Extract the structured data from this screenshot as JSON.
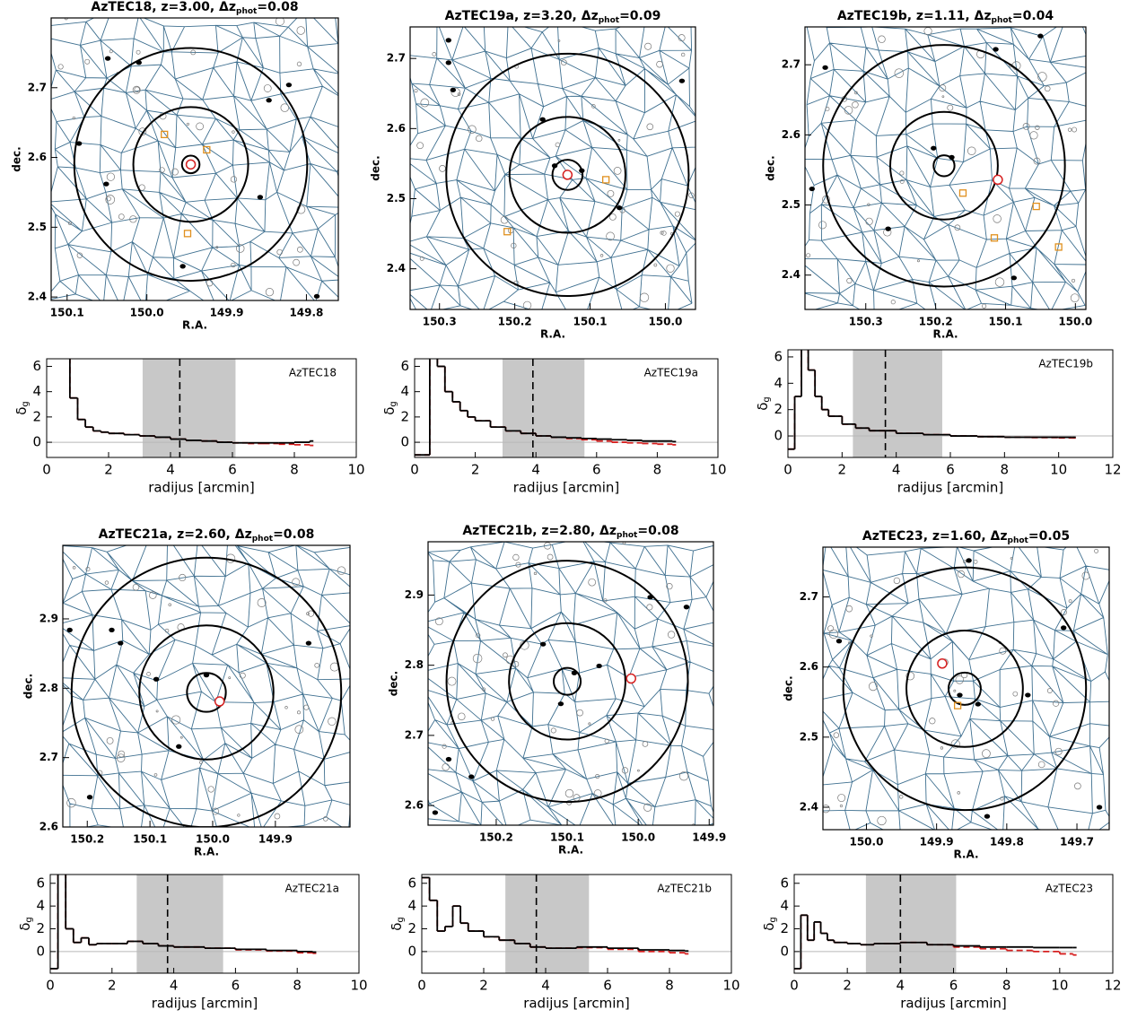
{
  "chart_data": [
    {
      "type": "map",
      "title": "AzTEC18, z=3.00, Δz",
      "title_sub": "phot",
      "title_end": "=0.08",
      "x_label": "R.A.",
      "y_label": "dec.",
      "xlim": [
        150.12,
        149.76
      ],
      "ylim": [
        2.395,
        2.8
      ],
      "xticks": [
        150.1,
        {
          "value": 150,
          "label": "150.0"
        },
        149.9,
        149.8
      ],
      "yticks": [
        2.4,
        2.5,
        2.6,
        2.7
      ],
      "center": [
        149.945,
        2.59
      ],
      "radii": [
        0.011,
        0.072,
        0.146
      ],
      "target": [
        149.945,
        2.59
      ],
      "squares": {
        "x": [
          149.978,
          149.925,
          149.949
        ],
        "y": [
          2.633,
          2.611,
          2.491
        ]
      },
      "dots": {
        "x": [
          150.049,
          150.01,
          149.822,
          149.847,
          150.051,
          149.858,
          149.955,
          149.787,
          150.085
        ],
        "y": [
          2.742,
          2.736,
          2.704,
          2.682,
          2.562,
          2.543,
          2.444,
          2.401,
          2.62
        ]
      }
    },
    {
      "type": "step",
      "label": "AzTEC18",
      "x_label": "radijus [arcmin]",
      "y_label": "δ",
      "y_label_sub": "g",
      "xlim": [
        0,
        10
      ],
      "ylim": [
        -1.2,
        6.6
      ],
      "xticks": [
        0,
        2,
        4,
        6,
        8,
        10
      ],
      "yticks": [
        0,
        2,
        4,
        6
      ],
      "hline": 0,
      "shade": [
        3.1,
        6.1
      ],
      "dashed": 4.3,
      "x": [
        0.5,
        0.75,
        1,
        1.25,
        1.5,
        1.75,
        2,
        2.5,
        3,
        3.5,
        4,
        4.5,
        5,
        5.5,
        6,
        6.5,
        7,
        7.5,
        8,
        8.5
      ],
      "series": [
        {
          "color": "#d62020",
          "dash": true,
          "values": [
            7.5,
            3.5,
            1.8,
            1.2,
            0.9,
            0.8,
            0.7,
            0.6,
            0.5,
            0.4,
            0.25,
            0.15,
            0.1,
            0,
            -0.05,
            -0.1,
            -0.1,
            -0.15,
            -0.2,
            -0.25
          ]
        },
        {
          "color": "#000000",
          "dash": false,
          "values": [
            7.5,
            3.5,
            1.8,
            1.2,
            0.9,
            0.8,
            0.7,
            0.6,
            0.5,
            0.4,
            0.25,
            0.15,
            0.1,
            0,
            -0.05,
            -0.05,
            -0.05,
            -0.05,
            0,
            0.1
          ]
        }
      ]
    },
    {
      "type": "map",
      "title": "AzTEC19a, z=3.20, Δz",
      "title_sub": "phot",
      "title_end": "=0.09",
      "x_label": "R.A.",
      "y_label": "dec.",
      "xlim": [
        150.339,
        149.96
      ],
      "ylim": [
        2.342,
        2.745
      ],
      "xticks": [
        150.3,
        150.2,
        150.1,
        {
          "value": 150,
          "label": "150.0"
        }
      ],
      "yticks": [
        2.4,
        2.5,
        2.6,
        2.7
      ],
      "center": [
        150.13,
        2.534
      ],
      "radii": [
        0.02,
        0.077,
        0.161
      ],
      "target": [
        150.13,
        2.534
      ],
      "squares": {
        "x": [
          150.079,
          150.21
        ],
        "y": [
          2.527,
          2.453
        ]
      },
      "dots": {
        "x": [
          150.288,
          150.282,
          150.147,
          150.111,
          150.061,
          150.163,
          149.978,
          150.288
        ],
        "y": [
          2.694,
          2.655,
          2.547,
          2.54,
          2.487,
          2.613,
          2.668,
          2.726
        ]
      }
    },
    {
      "type": "step",
      "label": "AzTEC19a",
      "x_label": "radijus [arcmin]",
      "y_label": "δ",
      "y_label_sub": "g",
      "xlim": [
        0,
        10
      ],
      "ylim": [
        -1.2,
        6.6
      ],
      "xticks": [
        0,
        2,
        4,
        6,
        8,
        10
      ],
      "yticks": [
        0,
        2,
        4,
        6
      ],
      "hline": 0,
      "shade": [
        2.9,
        5.6
      ],
      "dashed": 3.9,
      "x": [
        0,
        0.5,
        0.75,
        1,
        1.25,
        1.5,
        1.75,
        2,
        2.5,
        3,
        3.5,
        4,
        4.5,
        5,
        5.5,
        6,
        6.5,
        7,
        7.5,
        8,
        8.5
      ],
      "series": [
        {
          "color": "#d62020",
          "dash": true,
          "values": [
            -1,
            7.5,
            6,
            4,
            3.2,
            2.5,
            2,
            1.7,
            1.2,
            0.9,
            0.7,
            0.5,
            0.4,
            0.3,
            0.2,
            0.1,
            0,
            -0.05,
            -0.1,
            -0.15,
            -0.2
          ]
        },
        {
          "color": "#000000",
          "dash": false,
          "values": [
            -1,
            7.5,
            6,
            4,
            3.2,
            2.5,
            2,
            1.7,
            1.2,
            0.9,
            0.7,
            0.5,
            0.4,
            0.35,
            0.3,
            0.25,
            0.2,
            0.15,
            0.1,
            0.1,
            0.05
          ]
        }
      ]
    },
    {
      "type": "map",
      "title": "AzTEC19b, z=1.11, Δz",
      "title_sub": "phot",
      "title_end": "=0.04",
      "x_label": "R.A.",
      "y_label": "dec.",
      "xlim": [
        150.387,
        149.985
      ],
      "ylim": [
        2.351,
        2.754
      ],
      "xticks": [
        150.3,
        150.2,
        150.1,
        {
          "value": 150,
          "label": "150.0"
        }
      ],
      "yticks": [
        2.4,
        2.5,
        2.6,
        2.7
      ],
      "center": [
        150.188,
        2.556
      ],
      "radii": [
        0.015,
        0.077,
        0.173
      ],
      "target": [
        150.111,
        2.536
      ],
      "squares": {
        "x": [
          150.161,
          150.056,
          150.116,
          150.024
        ],
        "y": [
          2.517,
          2.498,
          2.453,
          2.44
        ]
      },
      "dots": {
        "x": [
          150.358,
          150.114,
          150.05,
          150.203,
          150.177,
          150.377,
          150.088,
          150.268
        ],
        "y": [
          2.696,
          2.722,
          2.741,
          2.581,
          2.568,
          2.523,
          2.396,
          2.466
        ]
      }
    },
    {
      "type": "step",
      "label": "AzTEC19b",
      "x_label": "radijus [arcmin]",
      "y_label": "δ",
      "y_label_sub": "g",
      "xlim": [
        0,
        12
      ],
      "ylim": [
        -1.63,
        6.54
      ],
      "xticks": [
        0,
        2,
        4,
        6,
        8,
        10,
        12
      ],
      "yticks": [
        0,
        2,
        4,
        6
      ],
      "hline": 0,
      "shade": [
        2.4,
        5.7
      ],
      "dashed": 3.6,
      "x": [
        0,
        0.25,
        0.5,
        0.75,
        1,
        1.25,
        1.5,
        2,
        2.5,
        3,
        4,
        5,
        6,
        7,
        8,
        9,
        10,
        10.5
      ],
      "series": [
        {
          "color": "#d62020",
          "dash": true,
          "values": [
            -1,
            3,
            7.5,
            5,
            3,
            2,
            1.5,
            0.9,
            0.6,
            0.4,
            0.2,
            0.1,
            0,
            -0.05,
            -0.1,
            -0.12,
            -0.15,
            -0.15
          ]
        },
        {
          "color": "#000000",
          "dash": false,
          "values": [
            -1,
            3,
            7.5,
            5,
            3,
            2,
            1.5,
            0.9,
            0.6,
            0.4,
            0.2,
            0.1,
            0,
            -0.05,
            -0.1,
            -0.1,
            -0.1,
            -0.1
          ]
        }
      ]
    },
    {
      "type": "map",
      "title": "AzTEC21a, z=2.60, Δz",
      "title_sub": "phot",
      "title_end": "=0.08",
      "x_label": "R.A.",
      "y_label": "dec.",
      "xlim": [
        150.239,
        149.781
      ],
      "ylim": [
        2.6,
        3.006
      ],
      "xticks": [
        150.2,
        150.1,
        {
          "value": 150,
          "label": "150.0"
        },
        149.9
      ],
      "yticks": [
        2.6,
        2.7,
        2.8,
        2.9
      ],
      "center": [
        150.01,
        2.794
      ],
      "radii": [
        0.031,
        0.107,
        0.215
      ],
      "target": [
        149.989,
        2.781
      ],
      "squares": {
        "x": [],
        "y": []
      },
      "dots": {
        "x": [
          150.228,
          150.161,
          150.147,
          150.09,
          150.054,
          149.847,
          150.196,
          150.01
        ],
        "y": [
          2.884,
          2.884,
          2.865,
          2.813,
          2.716,
          2.865,
          2.643,
          2.819
        ]
      }
    },
    {
      "type": "step",
      "label": "AzTEC21a",
      "x_label": "radijus [arcmin]",
      "y_label": "δ",
      "y_label_sub": "g",
      "xlim": [
        0,
        10
      ],
      "ylim": [
        -1.9,
        6.77
      ],
      "xticks": [
        0,
        2,
        4,
        6,
        8,
        10
      ],
      "yticks": [
        0,
        2,
        4,
        6
      ],
      "hline": 0,
      "shade": [
        2.8,
        5.6
      ],
      "dashed": 3.8,
      "x": [
        0,
        0.25,
        0.5,
        0.75,
        1,
        1.25,
        1.5,
        2,
        2.5,
        3,
        3.5,
        4,
        5,
        6,
        7,
        8,
        8.5
      ],
      "series": [
        {
          "color": "#d62020",
          "dash": true,
          "values": [
            -1.5,
            7,
            2,
            0.8,
            1.2,
            0.6,
            0.7,
            0.7,
            0.9,
            0.7,
            0.5,
            0.4,
            0.3,
            0.15,
            0.05,
            -0.1,
            -0.15
          ]
        },
        {
          "color": "#000000",
          "dash": false,
          "values": [
            -1.5,
            7,
            2,
            0.8,
            1.2,
            0.6,
            0.7,
            0.7,
            0.9,
            0.7,
            0.5,
            0.4,
            0.3,
            0.2,
            0.1,
            0,
            -0.05
          ]
        }
      ]
    },
    {
      "type": "map",
      "title": "AzTEC21b, z=2.80, Δz",
      "title_sub": "phot",
      "title_end": "=0.08",
      "x_label": "R.A.",
      "y_label": "dec.",
      "xlim": [
        150.296,
        149.894
      ],
      "ylim": [
        2.572,
        2.976
      ],
      "xticks": [
        150.2,
        150.1,
        {
          "value": 150,
          "label": "150.0"
        },
        149.9
      ],
      "yticks": [
        2.6,
        2.7,
        2.8,
        2.9
      ],
      "center": [
        150.1,
        2.777
      ],
      "radii": [
        0.019,
        0.082,
        0.17
      ],
      "target": [
        150.01,
        2.781
      ],
      "squares": {
        "x": [],
        "y": []
      },
      "dots": {
        "x": [
          150.134,
          150.09,
          150.109,
          150.055,
          149.932,
          149.983,
          150.267,
          150.235,
          150.286
        ],
        "y": [
          2.83,
          2.789,
          2.745,
          2.799,
          2.883,
          2.897,
          2.666,
          2.641,
          2.59
        ]
      }
    },
    {
      "type": "step",
      "label": "AzTEC21b",
      "x_label": "radijus [arcmin]",
      "y_label": "δ",
      "y_label_sub": "g",
      "xlim": [
        0,
        10
      ],
      "ylim": [
        -1.9,
        6.77
      ],
      "xticks": [
        0,
        2,
        4,
        6,
        8,
        10
      ],
      "yticks": [
        0,
        2,
        4,
        6
      ],
      "hline": 0,
      "shade": [
        2.7,
        5.4
      ],
      "dashed": 3.7,
      "x": [
        0,
        0.25,
        0.5,
        0.75,
        1,
        1.25,
        1.5,
        2,
        2.5,
        3,
        3.5,
        4,
        5,
        6,
        7,
        8,
        8.5
      ],
      "series": [
        {
          "color": "#d62020",
          "dash": true,
          "values": [
            6.5,
            4.5,
            1.8,
            2.2,
            4,
            2.5,
            1.8,
            1.3,
            1,
            0.7,
            0.4,
            0.3,
            0.35,
            0.2,
            0,
            -0.1,
            -0.2
          ]
        },
        {
          "color": "#000000",
          "dash": false,
          "values": [
            6.5,
            4.5,
            1.8,
            2.2,
            4,
            2.5,
            1.8,
            1.3,
            1,
            0.7,
            0.4,
            0.3,
            0.4,
            0.3,
            0.15,
            0.1,
            0.05
          ]
        }
      ]
    },
    {
      "type": "map",
      "title": "AzTEC23, z=1.60, Δz",
      "title_sub": "phot",
      "title_end": "=0.05",
      "x_label": "R.A.",
      "y_label": "dec.",
      "xlim": [
        150.062,
        149.654
      ],
      "ylim": [
        2.368,
        2.771
      ],
      "xticks": [
        {
          "value": 150,
          "label": "150.0"
        },
        149.9,
        149.8,
        149.7
      ],
      "yticks": [
        2.4,
        2.5,
        2.6,
        2.7
      ],
      "center": [
        149.86,
        2.569
      ],
      "radii": [
        0.023,
        0.083,
        0.173
      ],
      "target": [
        149.892,
        2.605
      ],
      "squares": {
        "x": [
          149.87
        ],
        "y": [
          2.545
        ]
      },
      "dots": {
        "x": [
          149.854,
          149.867,
          149.841,
          149.77,
          150.039,
          149.719,
          149.828,
          149.668
        ],
        "y": [
          2.752,
          2.56,
          2.547,
          2.56,
          2.637,
          2.656,
          2.387,
          2.4
        ]
      }
    },
    {
      "type": "step",
      "label": "AzTEC23",
      "x_label": "radijus [arcmin]",
      "y_label": "δ",
      "y_label_sub": "g",
      "xlim": [
        0,
        12
      ],
      "ylim": [
        -1.9,
        6.77
      ],
      "xticks": [
        0,
        2,
        4,
        6,
        8,
        10,
        12
      ],
      "yticks": [
        0,
        2,
        4,
        6
      ],
      "hline": 0,
      "shade": [
        2.7,
        6.1
      ],
      "dashed": 4,
      "x": [
        0,
        0.25,
        0.5,
        0.75,
        1,
        1.25,
        1.5,
        2,
        2.5,
        3,
        4,
        5,
        6,
        7,
        8,
        9,
        10,
        10.5
      ],
      "series": [
        {
          "color": "#d62020",
          "dash": true,
          "values": [
            -1.5,
            3.2,
            1,
            2.6,
            1.6,
            1,
            0.8,
            0.7,
            0.6,
            0.7,
            0.8,
            0.6,
            0.4,
            0.25,
            0.1,
            0,
            -0.2,
            -0.3
          ]
        },
        {
          "color": "#000000",
          "dash": false,
          "values": [
            -1.5,
            3.2,
            1,
            2.6,
            1.6,
            1,
            0.8,
            0.7,
            0.6,
            0.7,
            0.8,
            0.6,
            0.5,
            0.4,
            0.4,
            0.35,
            0.35,
            0.35
          ]
        }
      ]
    }
  ]
}
